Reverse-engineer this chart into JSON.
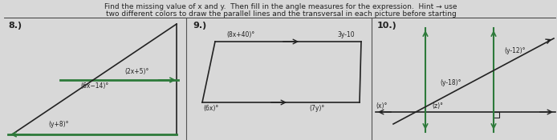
{
  "title_line1": "Find the missing value of x and y.  Then fill in the angle measures for the expression.  Hint → use",
  "title_line2": "two different colors to draw the parallel lines and the transversal in each picture before starting",
  "bg_color": "#d8d8d8",
  "section8_label": "8.)",
  "section9_label": "9.)",
  "section10_label": "10.)",
  "s8_exprs": [
    "(2x+5)°",
    "(6x−14)°",
    "(y+8)°"
  ],
  "s9_exprs": [
    "(8x+40)°",
    "3y-10",
    "(6x)°",
    "(7y)°"
  ],
  "s10_exprs": [
    "(y-12)°",
    "(y-18)°",
    "(x)°",
    "(z)°"
  ],
  "green": "#2d7a3a",
  "dark": "#222222",
  "div_color": "#555555"
}
